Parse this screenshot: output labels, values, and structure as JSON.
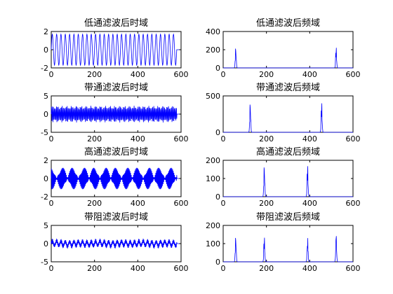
{
  "chart_data": [
    {
      "type": "line",
      "title": "低通滤波后时域",
      "domain": "time",
      "xlim": [
        0,
        600
      ],
      "ylim": [
        -2,
        2
      ],
      "xticks": [
        0,
        200,
        400,
        600
      ],
      "yticks": [
        -2,
        0,
        2
      ],
      "xticklabels": [
        "0",
        "200",
        "400",
        "600"
      ],
      "yticklabels": [
        "-2",
        "0",
        "2"
      ],
      "series": [
        {
          "color": "#0000ff",
          "amplitude": 1.7,
          "signal_end": 580,
          "carriers": [
            0.05
          ],
          "modulation": 0.0
        }
      ]
    },
    {
      "type": "line",
      "title": "低通滤波后频域",
      "domain": "frequency",
      "xlim": [
        0,
        600
      ],
      "ylim": [
        0,
        400
      ],
      "xticks": [
        0,
        200,
        400,
        600
      ],
      "yticks": [
        0,
        200,
        400
      ],
      "xticklabels": [
        "0",
        "200",
        "400",
        "600"
      ],
      "yticklabels": [
        "0",
        "200",
        "400"
      ],
      "series": [
        {
          "color": "#0000ff",
          "peaks": [
            {
              "x": 58,
              "y": 250
            },
            {
              "x": 522,
              "y": 250
            }
          ]
        }
      ]
    },
    {
      "type": "line",
      "title": "带通滤波后时域",
      "domain": "time",
      "xlim": [
        0,
        600
      ],
      "ylim": [
        -5,
        5
      ],
      "xticks": [
        0,
        200,
        400,
        600
      ],
      "yticks": [
        -5,
        0,
        5
      ],
      "xticklabels": [
        "0",
        "200",
        "400",
        "600"
      ],
      "yticklabels": [
        "-5",
        "0",
        "5"
      ],
      "series": [
        {
          "color": "#0000ff",
          "amplitude": 2.3,
          "signal_end": 580,
          "carriers": [
            0.22
          ],
          "modulation": 0.15
        }
      ]
    },
    {
      "type": "line",
      "title": "带通滤波后频域",
      "domain": "frequency",
      "xlim": [
        0,
        600
      ],
      "ylim": [
        0,
        500
      ],
      "xticks": [
        0,
        200,
        400,
        600
      ],
      "yticks": [
        0,
        500
      ],
      "xticklabels": [
        "0",
        "200",
        "400",
        "600"
      ],
      "yticklabels": [
        "0",
        "500"
      ],
      "series": [
        {
          "color": "#0000ff",
          "peaks": [
            {
              "x": 125,
              "y": 450
            },
            {
              "x": 455,
              "y": 450
            }
          ]
        }
      ]
    },
    {
      "type": "line",
      "title": "高通滤波后时域",
      "domain": "time",
      "xlim": [
        0,
        600
      ],
      "ylim": [
        -2,
        2
      ],
      "xticks": [
        0,
        200,
        400,
        600
      ],
      "yticks": [
        -2,
        0,
        2
      ],
      "xticklabels": [
        "0",
        "200",
        "400",
        "600"
      ],
      "yticklabels": [
        "-2",
        "0",
        "2"
      ],
      "series": [
        {
          "color": "#0000ff",
          "amplitude": 1.3,
          "signal_end": 580,
          "carriers": [
            0.33,
            0.35
          ],
          "modulation": 0.0
        }
      ]
    },
    {
      "type": "line",
      "title": "高通滤波后频域",
      "domain": "frequency",
      "xlim": [
        0,
        600
      ],
      "ylim": [
        0,
        200
      ],
      "xticks": [
        0,
        200,
        400,
        600
      ],
      "yticks": [
        0,
        100,
        200
      ],
      "xticklabels": [
        "0",
        "200",
        "400",
        "600"
      ],
      "yticklabels": [
        "0",
        "100",
        "200"
      ],
      "series": [
        {
          "color": "#0000ff",
          "peaks": [
            {
              "x": 190,
              "y": 190
            },
            {
              "x": 390,
              "y": 190
            }
          ]
        }
      ]
    },
    {
      "type": "line",
      "title": "带阻滤波后时域",
      "domain": "time",
      "xlim": [
        0,
        600
      ],
      "ylim": [
        -5,
        5
      ],
      "xticks": [
        0,
        200,
        400,
        600
      ],
      "yticks": [
        -5,
        0,
        5
      ],
      "xticklabels": [
        "0",
        "200",
        "400",
        "600"
      ],
      "yticklabels": [
        "-5",
        "0",
        "5"
      ],
      "series": [
        {
          "color": "#0000ff",
          "amplitude": 1.4,
          "signal_end": 580,
          "carriers": [
            0.05,
            0.33
          ],
          "modulation": 0.1
        }
      ]
    },
    {
      "type": "line",
      "title": "带阻滤波后频域",
      "domain": "frequency",
      "xlim": [
        0,
        600
      ],
      "ylim": [
        0,
        200
      ],
      "xticks": [
        0,
        200,
        400,
        600
      ],
      "yticks": [
        0,
        100,
        200
      ],
      "xticklabels": [
        "0",
        "200",
        "400",
        "600"
      ],
      "yticklabels": [
        "0",
        "100",
        "200"
      ],
      "series": [
        {
          "color": "#0000ff",
          "peaks": [
            {
              "x": 58,
              "y": 155
            },
            {
              "x": 190,
              "y": 150
            },
            {
              "x": 390,
              "y": 150
            },
            {
              "x": 522,
              "y": 160
            }
          ]
        }
      ]
    }
  ]
}
